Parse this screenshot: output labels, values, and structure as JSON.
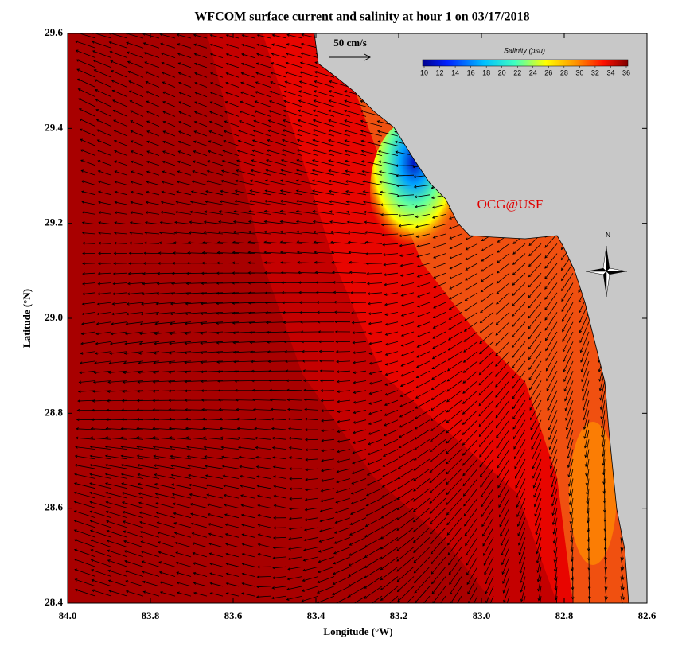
{
  "title": "WFCOM surface current and salinity at hour 1 on 03/17/2018",
  "x_axis": {
    "label": "Longitude (°W)",
    "lim": [
      84,
      82.6
    ],
    "ticks": [
      {
        "value": 84,
        "label": "84.0"
      },
      83.8,
      83.6,
      83.4,
      83.2,
      {
        "value": 83,
        "label": "83.0"
      },
      82.8,
      82.6
    ]
  },
  "y_axis": {
    "label": "Latitude (°N)",
    "lim": [
      28.4,
      29.6
    ],
    "ticks": [
      29.6,
      29.4,
      29.2,
      {
        "value": 29,
        "label": "29.0"
      },
      28.8,
      28.6,
      28.4
    ]
  },
  "colorbar": {
    "title": "Salinity (psu)",
    "lim": [
      10,
      36
    ],
    "ticks": [
      10,
      12,
      14,
      16,
      18,
      20,
      22,
      24,
      26,
      28,
      30,
      32,
      34,
      36
    ]
  },
  "scale_label": "50 cm/s",
  "credit": "OCG@USF",
  "compass_label": "N"
}
